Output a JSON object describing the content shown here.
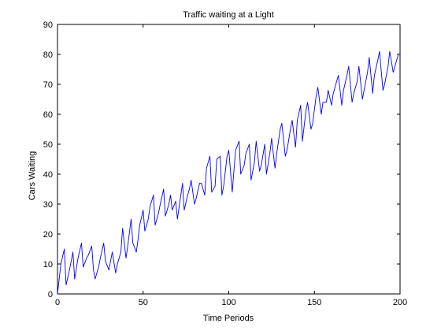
{
  "chart_data": {
    "type": "line",
    "title": "Traffic waiting at a Light",
    "xlabel": "Time Periods",
    "ylabel": "Cars Waiting",
    "xlim": [
      0,
      200
    ],
    "ylim": [
      0,
      90
    ],
    "xticks": [
      0,
      50,
      100,
      150,
      200
    ],
    "yticks": [
      0,
      10,
      20,
      30,
      40,
      50,
      60,
      70,
      80,
      90
    ],
    "grid": false,
    "series": [
      {
        "color": "#0000ff",
        "x": [
          0,
          2,
          4,
          5,
          7,
          9,
          10,
          12,
          14,
          15,
          17,
          18,
          20,
          21,
          22,
          23,
          24,
          25,
          27,
          28,
          30,
          31,
          32,
          34,
          35,
          37,
          38,
          40,
          41,
          43,
          44,
          46,
          47,
          48,
          50,
          51,
          53,
          54,
          56,
          57,
          59,
          60,
          62,
          63,
          65,
          66,
          67,
          69,
          70,
          71,
          73,
          74,
          76,
          77,
          78,
          80,
          81,
          83,
          84,
          86,
          87,
          89,
          90,
          92,
          93,
          95,
          96,
          97,
          99,
          100,
          102,
          103,
          104,
          106,
          107,
          109,
          110,
          112,
          113,
          115,
          116,
          118,
          119,
          121,
          122,
          124,
          125,
          127,
          128,
          130,
          131,
          133,
          134,
          136,
          137,
          139,
          140,
          142,
          143,
          145,
          146,
          148,
          149,
          151,
          152,
          154,
          155,
          157,
          158,
          160,
          161,
          163,
          164,
          166,
          167,
          169,
          170,
          172,
          173,
          175,
          176,
          178,
          179,
          181,
          182,
          184,
          185,
          187,
          188,
          190,
          191,
          193,
          194,
          196,
          197,
          199,
          200
        ],
        "y": [
          0,
          10,
          15,
          3,
          8,
          14,
          5,
          12,
          17,
          9,
          12,
          13,
          16,
          8,
          5,
          7,
          9,
          12,
          17,
          11,
          8,
          11,
          14,
          7,
          10,
          14,
          22,
          12,
          16,
          25,
          17,
          14,
          18,
          23,
          28,
          21,
          25,
          29,
          33,
          23,
          27,
          30,
          35,
          26,
          30,
          33,
          28,
          31,
          25,
          29,
          37,
          28,
          33,
          35,
          38,
          30,
          32,
          37,
          37,
          33,
          42,
          46,
          34,
          36,
          45,
          46,
          33,
          36,
          46,
          48,
          34,
          41,
          48,
          51,
          40,
          43,
          47,
          50,
          38,
          44,
          51,
          41,
          43,
          50,
          40,
          47,
          52,
          42,
          47,
          55,
          57,
          46,
          48,
          55,
          58,
          49,
          58,
          63,
          51,
          61,
          64,
          55,
          57,
          66,
          69,
          60,
          64,
          64,
          68,
          63,
          67,
          71,
          73,
          63,
          68,
          73,
          76,
          64,
          67,
          71,
          76,
          65,
          68,
          74,
          79,
          67,
          73,
          78,
          81,
          68,
          70,
          76,
          81,
          74,
          76,
          80,
          80
        ]
      }
    ]
  }
}
